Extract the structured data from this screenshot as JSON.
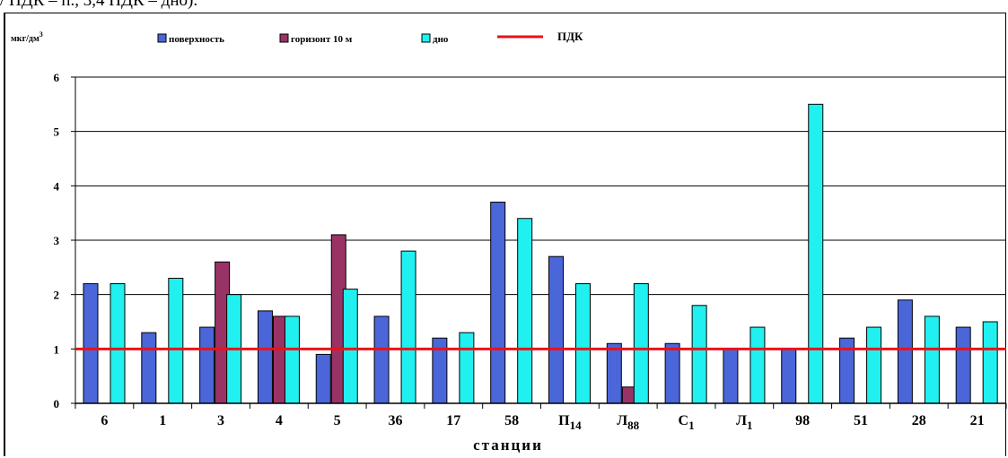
{
  "caption_fragment": "/ ПДК – п., 3,4 ПДК – дно).",
  "chart_data": {
    "type": "bar",
    "ylabel": "мкг/дм",
    "ylabel_superscript": "3",
    "xlabel": "станции",
    "ylim": [
      0,
      6
    ],
    "yticks": [
      "0",
      "1",
      "2",
      "3",
      "4",
      "5",
      "6"
    ],
    "grid": true,
    "legend_position": "top",
    "categories": [
      {
        "label": "6"
      },
      {
        "label": "1"
      },
      {
        "label": "3"
      },
      {
        "label": "4"
      },
      {
        "label": "5"
      },
      {
        "label": "36"
      },
      {
        "label": "17"
      },
      {
        "label": "58"
      },
      {
        "label": "П",
        "sub": "14"
      },
      {
        "label": "Л",
        "sub": "88"
      },
      {
        "label": "С",
        "sub": "1"
      },
      {
        "label": "Л",
        "sub": "1"
      },
      {
        "label": "98"
      },
      {
        "label": "51"
      },
      {
        "label": "28"
      },
      {
        "label": "21"
      }
    ],
    "series": [
      {
        "name": "поверхность",
        "color": "#4a66d9",
        "values": [
          2.2,
          1.3,
          1.4,
          1.7,
          0.9,
          1.6,
          1.2,
          3.7,
          2.7,
          1.1,
          1.1,
          1.0,
          1.0,
          1.2,
          1.9,
          1.4
        ]
      },
      {
        "name": "горизонт 10 м",
        "color": "#993366",
        "values": [
          null,
          null,
          2.6,
          1.6,
          3.1,
          null,
          null,
          null,
          null,
          0.3,
          null,
          null,
          null,
          null,
          null,
          null
        ]
      },
      {
        "name": "дно",
        "color": "#21f0f0",
        "values": [
          2.2,
          2.3,
          2.0,
          1.6,
          2.1,
          2.8,
          1.3,
          3.4,
          2.2,
          2.2,
          1.8,
          1.4,
          5.5,
          1.4,
          1.6,
          1.5
        ]
      }
    ],
    "reference_line": {
      "name": "ПДК",
      "value": 1.0,
      "color": "#e8121b"
    }
  }
}
